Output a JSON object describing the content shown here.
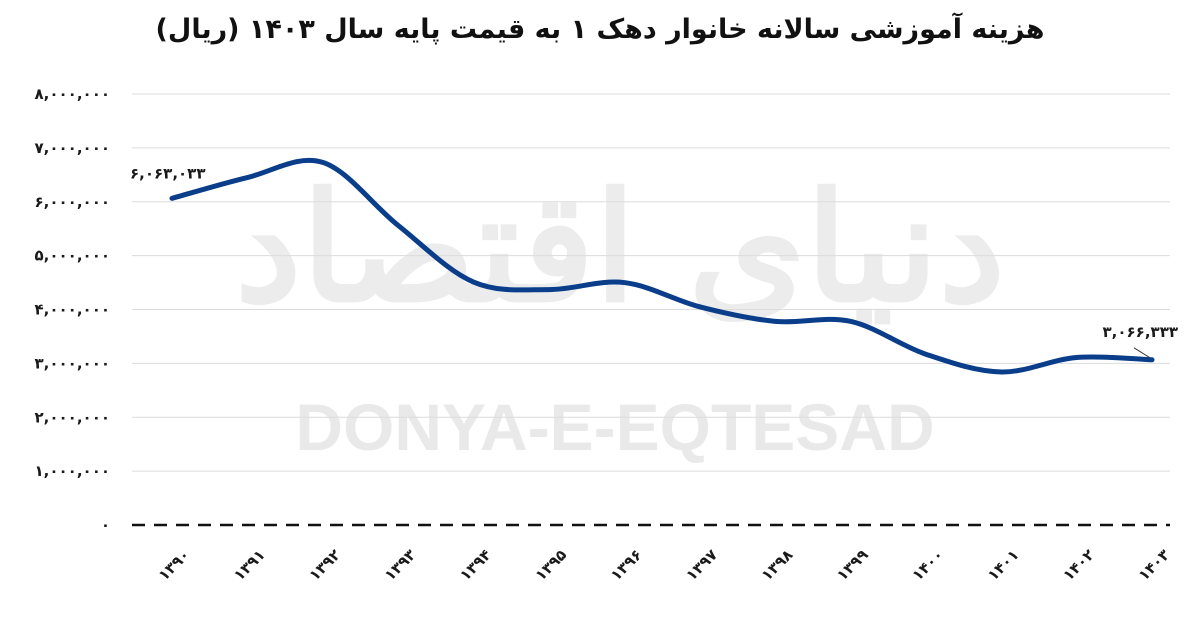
{
  "chart_data": {
    "type": "line",
    "title": "هزینه آموزشی سالانه خانوار دهک ۱ به قیمت پایه سال ۱۴۰۳ (ریال)",
    "xlabel": "",
    "ylabel": "",
    "categories": [
      "۱۳۹۰",
      "۱۳۹۱",
      "۱۳۹۲",
      "۱۳۹۳",
      "۱۳۹۴",
      "۱۳۹۵",
      "۱۳۹۶",
      "۱۳۹۷",
      "۱۳۹۸",
      "۱۳۹۹",
      "۱۴۰۰",
      "۱۴۰۱",
      "۱۴۰۲",
      "۱۴۰۳"
    ],
    "x": [
      1390,
      1391,
      1392,
      1393,
      1394,
      1395,
      1396,
      1397,
      1398,
      1399,
      1400,
      1401,
      1402,
      1403
    ],
    "series": [
      {
        "name": "هزینه آموزشی سالانه خانوار دهک ۱",
        "color": "#0a3d8a",
        "smooth": true,
        "values": [
          6063033,
          6450000,
          6730000,
          5560000,
          4510000,
          4370000,
          4500000,
          4050000,
          3780000,
          3780000,
          3170000,
          2840000,
          3110000,
          3066333
        ]
      }
    ],
    "ylim": [
      0,
      8000000
    ],
    "yticks": [
      0,
      1000000,
      2000000,
      3000000,
      4000000,
      5000000,
      6000000,
      7000000,
      8000000
    ],
    "ytick_labels": [
      "۰",
      "۱,۰۰۰,۰۰۰",
      "۲,۰۰۰,۰۰۰",
      "۳,۰۰۰,۰۰۰",
      "۴,۰۰۰,۰۰۰",
      "۵,۰۰۰,۰۰۰",
      "۶,۰۰۰,۰۰۰",
      "۷,۰۰۰,۰۰۰",
      "۸,۰۰۰,۰۰۰"
    ],
    "grid": true,
    "zero_line_style": "dashed",
    "legend": "none",
    "annotations": [
      {
        "point_index": 0,
        "text": "۶,۰۶۳,۰۳۳",
        "value": 6063033
      },
      {
        "point_index": 13,
        "text": "۳,۰۶۶,۳۳۳",
        "value": 3066333
      }
    ]
  },
  "watermark": {
    "english": "DONYA-E-EQTESAD",
    "persian": "دنیای اقتصاد"
  },
  "colors": {
    "line": "#0a3d8a",
    "grid": "#dcdcdc",
    "text": "#1a1a1a",
    "watermark": "#ececec"
  }
}
